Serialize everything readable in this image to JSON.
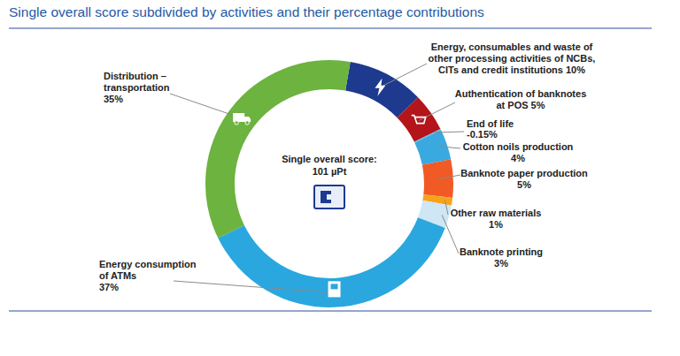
{
  "chart_data": {
    "type": "donut",
    "title": "Single overall score subdivided by activities and their percentage contributions",
    "annotations": [
      "Single overall score:",
      "101 µPt"
    ],
    "categories": [
      "Energy, consumables and waste of other processing activities of NCBs, CITs and credit institutions",
      "Authentication of banknotes at POS",
      "End of life",
      "Cotton noils production",
      "Banknote paper production",
      "Other raw materials",
      "Banknote printing",
      "Energy consumption of ATMs",
      "Distribution – transportation"
    ],
    "values": [
      10,
      5,
      -0.15,
      4,
      5,
      1,
      3,
      37,
      35
    ],
    "value_labels": [
      "10%",
      "5%",
      "-0.15%",
      "4%",
      "5%",
      "1%",
      "3%",
      "37%",
      "35%"
    ],
    "colors": [
      "#1d3a8f",
      "#b3151b",
      "#5bb8e6",
      "#3aa9df",
      "#f15a24",
      "#f7a21b",
      "#cfe6f4",
      "#2aa7df",
      "#6cb33f"
    ],
    "data_labels": true
  }
}
